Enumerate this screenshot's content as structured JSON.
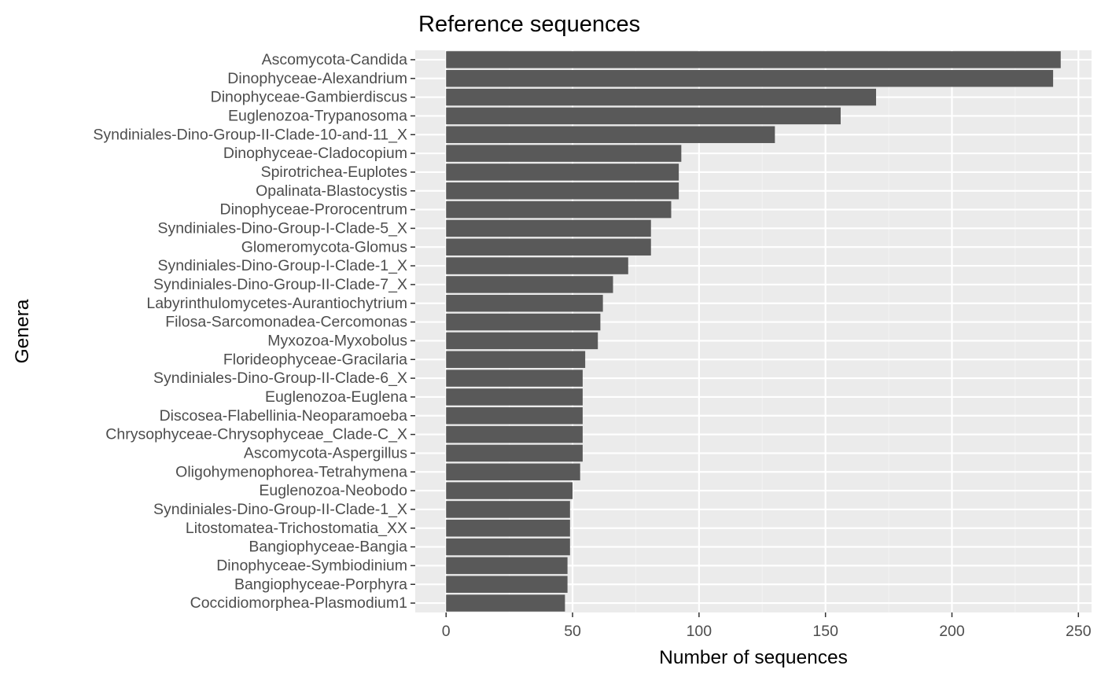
{
  "chart_data": {
    "type": "bar",
    "orientation": "horizontal",
    "title": "Reference sequences",
    "xlabel": "Number of sequences",
    "ylabel": "Genera",
    "xlim": [
      -12.2,
      255.2
    ],
    "x_ticks": [
      0,
      50,
      100,
      150,
      200,
      250
    ],
    "grid": true,
    "legend": "none",
    "colors": {
      "bar": "#595959",
      "panel_background": "#ebebeb",
      "grid_major": "#ffffff",
      "grid_minor": "#f2f2f2",
      "tick_text": "#4d4d4d",
      "tick_mark": "#333333"
    },
    "categories": [
      "Ascomycota-Candida",
      "Dinophyceae-Alexandrium",
      "Dinophyceae-Gambierdiscus",
      "Euglenozoa-Trypanosoma",
      "Syndiniales-Dino-Group-II-Clade-10-and-11_X",
      "Dinophyceae-Cladocopium",
      "Spirotrichea-Euplotes",
      "Opalinata-Blastocystis",
      "Dinophyceae-Prorocentrum",
      "Syndiniales-Dino-Group-I-Clade-5_X",
      "Glomeromycota-Glomus",
      "Syndiniales-Dino-Group-I-Clade-1_X",
      "Syndiniales-Dino-Group-II-Clade-7_X",
      "Labyrinthulomycetes-Aurantiochytrium",
      "Filosa-Sarcomonadea-Cercomonas",
      "Myxozoa-Myxobolus",
      "Florideophyceae-Gracilaria",
      "Syndiniales-Dino-Group-II-Clade-6_X",
      "Euglenozoa-Euglena",
      "Discosea-Flabellinia-Neoparamoeba",
      "Chrysophyceae-Chrysophyceae_Clade-C_X",
      "Ascomycota-Aspergillus",
      "Oligohymenophorea-Tetrahymena",
      "Euglenozoa-Neobodo",
      "Syndiniales-Dino-Group-II-Clade-1_X",
      "Litostomatea-Trichostomatia_XX",
      "Bangiophyceae-Bangia",
      "Dinophyceae-Symbiodinium",
      "Bangiophyceae-Porphyra",
      "Coccidiomorphea-Plasmodium1"
    ],
    "values": [
      243,
      240,
      170,
      156,
      130,
      93,
      92,
      92,
      89,
      81,
      81,
      72,
      66,
      62,
      61,
      60,
      55,
      54,
      54,
      54,
      54,
      54,
      53,
      50,
      49,
      49,
      49,
      48,
      48,
      47
    ]
  }
}
